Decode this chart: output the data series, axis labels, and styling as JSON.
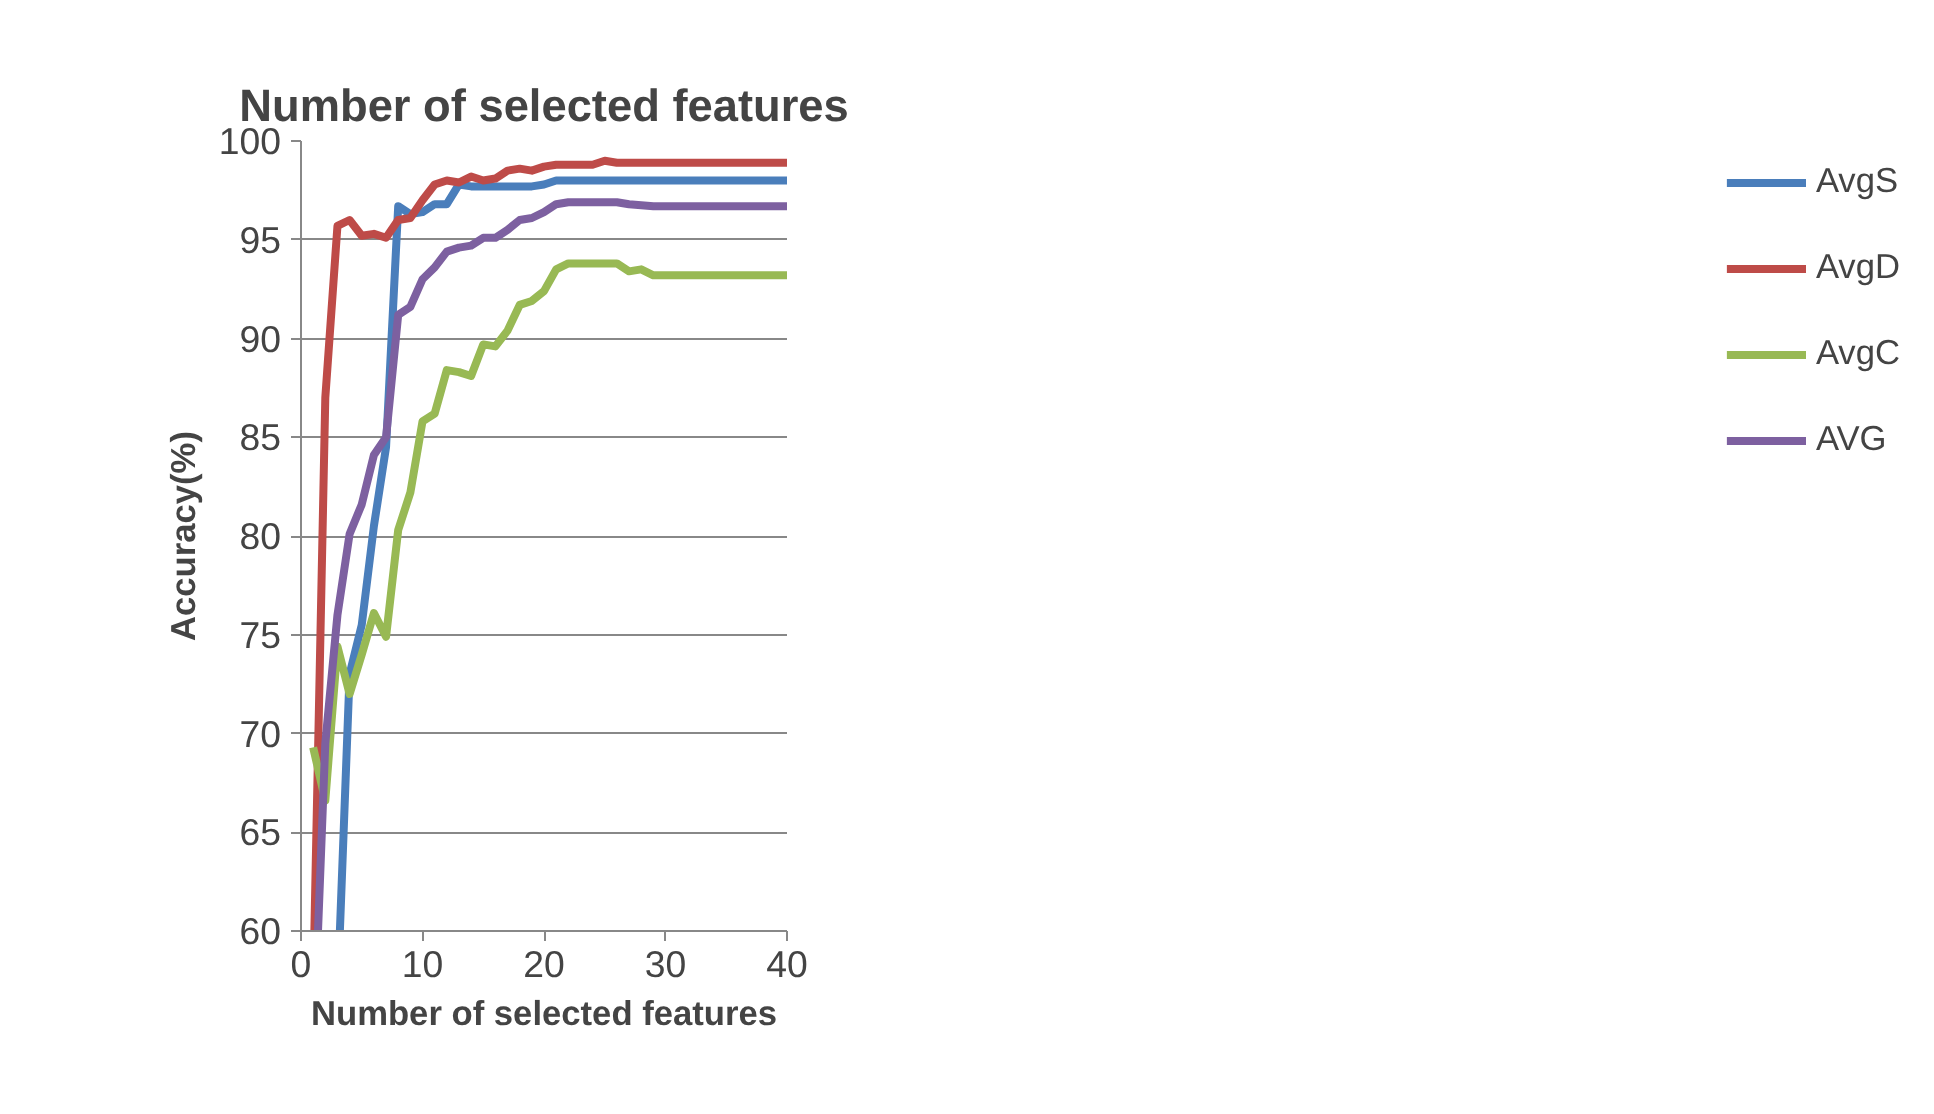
{
  "chart_data": {
    "type": "line",
    "title": "Number of selected features",
    "xlabel": "Number of selected features",
    "ylabel": "Accuracy(%)",
    "xlim": [
      0,
      40
    ],
    "xticks": [
      0,
      10,
      20,
      30,
      40
    ],
    "ylim": [
      60,
      100
    ],
    "yticks": [
      60,
      65,
      70,
      75,
      80,
      85,
      90,
      95,
      100
    ],
    "grid": "y",
    "legend": "right",
    "marker": "none",
    "line_style": "solid",
    "series": [
      {
        "name": "AvgS",
        "color": "#4a7ebb",
        "x": [
          3.2,
          4,
          5,
          6,
          7,
          8,
          9,
          10,
          11,
          12,
          13,
          14,
          15,
          16,
          17,
          18,
          19,
          20,
          21,
          22,
          25,
          30,
          35,
          40
        ],
        "values": [
          60,
          73,
          75.5,
          80.5,
          84.5,
          96.7,
          96.3,
          96.4,
          96.8,
          96.8,
          97.8,
          97.7,
          97.7,
          97.7,
          97.7,
          97.7,
          97.7,
          97.8,
          98,
          98,
          98,
          98,
          98,
          98
        ]
      },
      {
        "name": "AvgD",
        "color": "#be4b48",
        "x": [
          1.1,
          2,
          3,
          4,
          5,
          6,
          7,
          8,
          9,
          10,
          11,
          12,
          13,
          14,
          15,
          16,
          17,
          18,
          19,
          20,
          21,
          24,
          25,
          26,
          30,
          35,
          40
        ],
        "values": [
          60,
          87,
          95.7,
          96,
          95.2,
          95.3,
          95.1,
          96,
          96.1,
          97,
          97.8,
          98,
          97.9,
          98.2,
          98,
          98.1,
          98.5,
          98.6,
          98.5,
          98.7,
          98.8,
          98.8,
          99,
          98.9,
          98.9,
          98.9,
          98.9
        ]
      },
      {
        "name": "AvgC",
        "color": "#98b954",
        "x": [
          1,
          2,
          3,
          4,
          5,
          6,
          7,
          8,
          9,
          10,
          11,
          12,
          13,
          14,
          15,
          16,
          17,
          18,
          19,
          20,
          21,
          22,
          26,
          27,
          28,
          29,
          35,
          40
        ],
        "values": [
          69.3,
          66.6,
          74.4,
          72,
          74,
          76.1,
          74.9,
          80.3,
          82.2,
          85.8,
          86.2,
          88.4,
          88.3,
          88.1,
          89.7,
          89.6,
          90.4,
          91.7,
          91.9,
          92.4,
          93.5,
          93.8,
          93.8,
          93.4,
          93.5,
          93.2,
          93.2,
          93.2
        ]
      },
      {
        "name": "AVG",
        "color": "#7d60a0",
        "x": [
          1.4,
          2,
          3,
          4,
          5,
          6,
          7,
          8,
          9,
          10,
          11,
          12,
          13,
          14,
          15,
          16,
          17,
          18,
          19,
          20,
          21,
          22,
          26,
          27,
          29,
          35,
          40
        ],
        "values": [
          60,
          69.5,
          76,
          80.1,
          81.6,
          84.1,
          85,
          91.2,
          91.6,
          93,
          93.6,
          94.4,
          94.6,
          94.7,
          95.1,
          95.1,
          95.5,
          96,
          96.1,
          96.4,
          96.8,
          96.9,
          96.9,
          96.8,
          96.7,
          96.7,
          96.7
        ]
      }
    ]
  }
}
